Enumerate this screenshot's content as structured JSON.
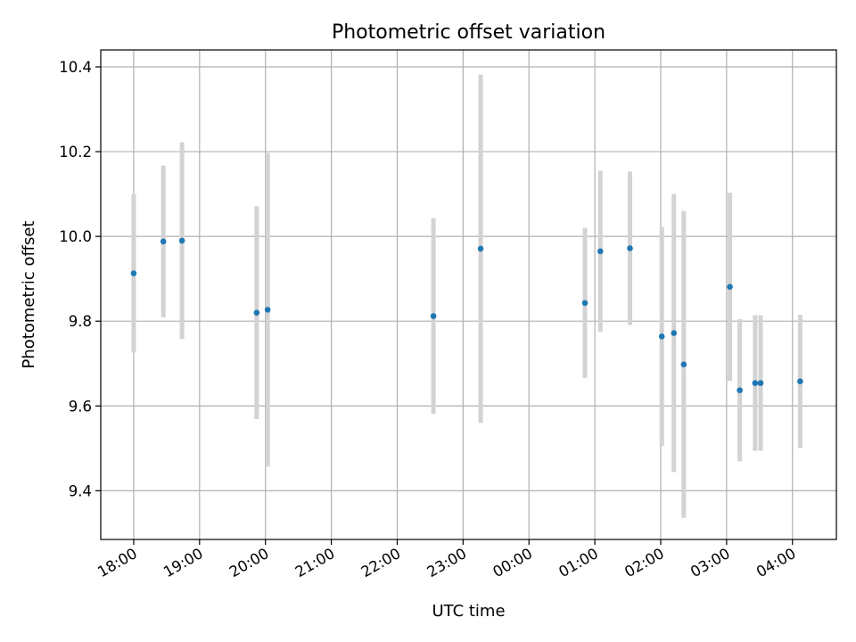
{
  "chart_data": {
    "type": "scatter",
    "title": "Photometric offset variation",
    "xlabel": "UTC time",
    "ylabel": "Photometric offset",
    "x_axis_kind": "time",
    "xlim": [
      "17:30",
      "04:40"
    ],
    "ylim": [
      9.285,
      10.44
    ],
    "x_ticks": [
      "18:00",
      "19:00",
      "20:00",
      "21:00",
      "22:00",
      "23:00",
      "00:00",
      "01:00",
      "02:00",
      "03:00",
      "04:00"
    ],
    "y_ticks": [
      "9.4",
      "9.6",
      "9.8",
      "10.0",
      "10.2",
      "10.4"
    ],
    "grid": true,
    "point_color": "#1f77b4",
    "errorbar_color": "#d3d3d3",
    "points": [
      {
        "x": "18:00",
        "y": 9.913,
        "err": 0.187
      },
      {
        "x": "18:27",
        "y": 9.988,
        "err": 0.179
      },
      {
        "x": "18:44",
        "y": 9.99,
        "err": 0.232
      },
      {
        "x": "19:52",
        "y": 9.82,
        "err": 0.251
      },
      {
        "x": "20:02",
        "y": 9.827,
        "err": 0.37
      },
      {
        "x": "22:33",
        "y": 9.812,
        "err": 0.231
      },
      {
        "x": "23:16",
        "y": 9.971,
        "err": 0.411
      },
      {
        "x": "00:51",
        "y": 9.843,
        "err": 0.177
      },
      {
        "x": "01:05",
        "y": 9.965,
        "err": 0.19
      },
      {
        "x": "01:32",
        "y": 9.972,
        "err": 0.181
      },
      {
        "x": "02:01",
        "y": 9.764,
        "err": 0.258
      },
      {
        "x": "02:12",
        "y": 9.772,
        "err": 0.328
      },
      {
        "x": "02:21",
        "y": 9.698,
        "err": 0.362
      },
      {
        "x": "03:03",
        "y": 9.881,
        "err": 0.222
      },
      {
        "x": "03:12",
        "y": 9.637,
        "err": 0.168
      },
      {
        "x": "03:26",
        "y": 9.654,
        "err": 0.16
      },
      {
        "x": "03:31",
        "y": 9.654,
        "err": 0.16
      },
      {
        "x": "04:07",
        "y": 9.658,
        "err": 0.157
      }
    ]
  }
}
